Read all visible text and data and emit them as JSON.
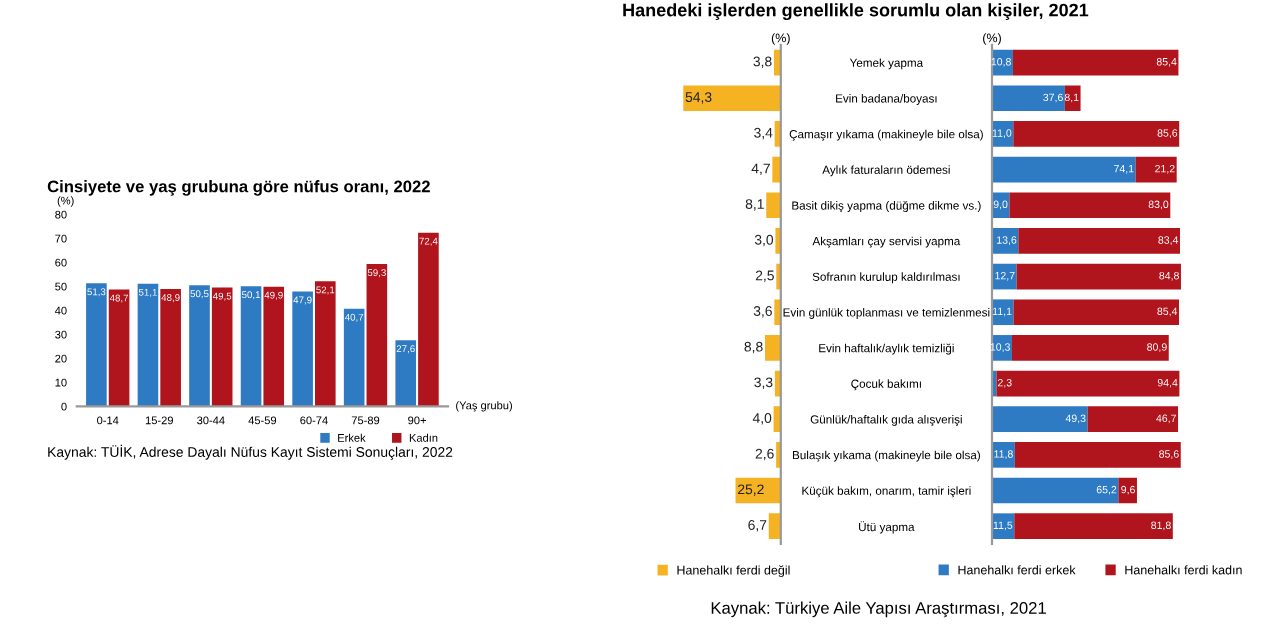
{
  "chart_data": [
    {
      "type": "bar",
      "title": "Cinsiyete ve yaş grubuna göre nüfus oranı, 2022",
      "ylabel": "(%)",
      "xlabel": "(Yaş grubu)",
      "categories": [
        "0-14",
        "15-29",
        "30-44",
        "45-59",
        "60-74",
        "75-89",
        "90+"
      ],
      "series": [
        {
          "name": "Erkek",
          "color": "#2e7bc4",
          "values": [
            51.3,
            51.1,
            50.5,
            50.1,
            47.9,
            40.7,
            27.6
          ],
          "value_labels": [
            "51,3",
            "51,1",
            "50,5",
            "50,1",
            "47,9",
            "40,7",
            "27,6"
          ]
        },
        {
          "name": "Kadın",
          "color": "#b0141c",
          "values": [
            48.7,
            48.9,
            49.5,
            49.9,
            52.1,
            59.3,
            72.4
          ],
          "value_labels": [
            "48,7",
            "48,9",
            "49,5",
            "49,9",
            "52,1",
            "59,3",
            "72,4"
          ]
        }
      ],
      "ylim": [
        0,
        80
      ],
      "yticks": [
        0,
        10,
        20,
        30,
        40,
        50,
        60,
        70,
        80
      ],
      "legend": "bottom right",
      "annotations": [
        "Kaynak: TÜİK, Adrese Dayalı Nüfus Kayıt Sistemi Sonuçları, 2022"
      ]
    },
    {
      "type": "bar",
      "orientation": "horizontal",
      "title": "Hanedeki işlerden genellikle sorumlu olan kişiler, 2021",
      "xlabel": "(%)",
      "categories": [
        "Yemek yapma",
        "Evin badana/boyası",
        "Çamaşır yıkama (makineyle bile olsa)",
        "Aylık faturaların ödemesi",
        "Basit dikiş yapma (düğme dikme vs.)",
        "Akşamları çay servisi yapma",
        "Sofranın kurulup kaldırılması",
        "Evin günlük toplanması ve temizlenmesi",
        "Evin haftalık/aylık temizliği",
        "Çocuk bakımı",
        "Günlük/haftalık gıda alışverişi",
        "Bulaşık yıkama (makineyle bile olsa)",
        "Küçük bakım, onarım, tamir işleri",
        "Ütü yapma"
      ],
      "series": [
        {
          "name": "Hanehalkı ferdi değil",
          "color": "#f5b323",
          "values": [
            3.8,
            54.3,
            3.4,
            4.7,
            8.1,
            3.0,
            2.5,
            3.6,
            8.8,
            3.3,
            4.0,
            2.6,
            25.2,
            6.7
          ],
          "value_labels": [
            "3,8",
            "54,3",
            "3,4",
            "4,7",
            "8,1",
            "3,0",
            "2,5",
            "3,6",
            "8,8",
            "3,3",
            "4,0",
            "2,6",
            "25,2",
            "6,7"
          ]
        }
      ],
      "tick_labels": "y",
      "legend": "bottom left"
    },
    {
      "type": "bar",
      "orientation": "horizontal",
      "stacked": true,
      "xlabel": "(%)",
      "categories": [
        null,
        null,
        null,
        null,
        null,
        null,
        null,
        null,
        null,
        null,
        null,
        null,
        null,
        null
      ],
      "series": [
        {
          "name": "Hanehalkı ferdi erkek",
          "color": "#2e7bc4",
          "values": [
            10.8,
            37.6,
            11.0,
            74.1,
            9.0,
            13.6,
            12.7,
            11.1,
            10.3,
            2.3,
            49.3,
            11.8,
            65.2,
            11.5
          ],
          "value_labels": [
            "10,8",
            "37,6",
            "11,0",
            "74,1",
            "9,0",
            "13,6",
            "12,7",
            "11,1",
            "10,3",
            "2,3",
            "49,3",
            "11,8",
            "65,2",
            "11,5"
          ]
        },
        {
          "name": "Hanehalkı ferdi kadın",
          "color": "#b0141c",
          "values": [
            85.4,
            8.1,
            85.6,
            21.2,
            83.0,
            83.4,
            84.8,
            85.4,
            80.9,
            94.4,
            46.7,
            85.6,
            9.6,
            81.8
          ],
          "value_labels": [
            "85,4",
            "8,1",
            "85,6",
            "21,2",
            "83,0",
            "83,4",
            "84,8",
            "85,4",
            "80,9",
            "94,4",
            "46,7",
            "85,6",
            "9,6",
            "81,8"
          ]
        }
      ],
      "tick_labels": false,
      "legend": "bottom",
      "annotations": [
        "Kaynak: Türkiye Aile Yapısı Araştırması, 2021"
      ]
    }
  ]
}
